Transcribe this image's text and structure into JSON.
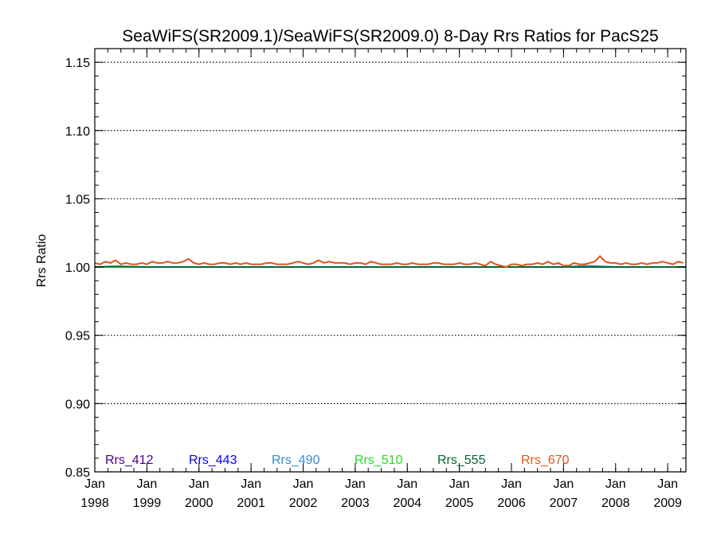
{
  "chart_data": {
    "type": "line",
    "title": "SeaWiFS(SR2009.1)/SeaWiFS(SR2009.0) 8-Day Rrs Ratios for PacS25",
    "xlabel": "",
    "ylabel": "Rrs Ratio",
    "xlim": [
      1998.0,
      2009.35
    ],
    "ylim": [
      0.85,
      1.16
    ],
    "yticks": [
      0.85,
      0.9,
      0.95,
      1.0,
      1.05,
      1.1,
      1.15
    ],
    "ytick_labels": [
      "0.85",
      "0.90",
      "0.95",
      "1.00",
      "1.05",
      "1.10",
      "1.15"
    ],
    "xticks": [
      {
        "value": 1998,
        "month": "Jan",
        "year": "1998"
      },
      {
        "value": 1999,
        "month": "Jan",
        "year": "1999"
      },
      {
        "value": 2000,
        "month": "Jan",
        "year": "2000"
      },
      {
        "value": 2001,
        "month": "Jan",
        "year": "2001"
      },
      {
        "value": 2002,
        "month": "Jan",
        "year": "2002"
      },
      {
        "value": 2003,
        "month": "Jan",
        "year": "2003"
      },
      {
        "value": 2004,
        "month": "Jan",
        "year": "2004"
      },
      {
        "value": 2005,
        "month": "Jan",
        "year": "2005"
      },
      {
        "value": 2006,
        "month": "Jan",
        "year": "2006"
      },
      {
        "value": 2007,
        "month": "Jan",
        "year": "2007"
      },
      {
        "value": 2008,
        "month": "Jan",
        "year": "2008"
      },
      {
        "value": 2009,
        "month": "Jan",
        "year": "2009"
      }
    ],
    "grid": "horizontal-dotted",
    "legend": "bottom",
    "series": [
      {
        "name": "Rrs_412",
        "color": "#4b0082",
        "x": [
          1998.0,
          1999.0,
          2000.0,
          2001.0,
          2002.0,
          2003.0,
          2004.0,
          2005.0,
          2006.0,
          2007.0,
          2008.0,
          2009.0,
          2009.35
        ],
        "y": [
          1.0,
          1.0,
          1.0,
          1.0,
          1.0,
          1.0,
          1.0,
          1.0,
          1.0,
          1.0,
          1.0,
          1.0,
          1.0
        ]
      },
      {
        "name": "Rrs_443",
        "color": "#0000ff",
        "x": [
          1998.0,
          1999.0,
          2000.0,
          2001.0,
          2002.0,
          2003.0,
          2004.0,
          2005.0,
          2006.0,
          2007.0,
          2008.0,
          2009.0,
          2009.35
        ],
        "y": [
          1.0,
          1.0,
          1.0,
          1.0,
          1.0,
          1.0,
          1.0,
          1.0,
          1.0,
          1.0,
          1.0,
          1.0,
          1.0
        ]
      },
      {
        "name": "Rrs_490",
        "color": "#3a8ad6",
        "x": [
          1998.0,
          1999.0,
          2000.0,
          2001.0,
          2002.0,
          2003.0,
          2004.0,
          2005.0,
          2006.0,
          2007.0,
          2007.45,
          2008.0,
          2009.0,
          2009.35
        ],
        "y": [
          1.0,
          1.0,
          1.0,
          1.0,
          1.0,
          1.0,
          1.0,
          1.0,
          1.0,
          1.0,
          1.001,
          1.0,
          1.0,
          1.0
        ]
      },
      {
        "name": "Rrs_510",
        "color": "#22dd22",
        "x": [
          1998.0,
          1999.0,
          2000.0,
          2001.0,
          2002.0,
          2003.0,
          2004.0,
          2005.0,
          2006.0,
          2007.0,
          2008.0,
          2009.0,
          2009.35
        ],
        "y": [
          1.0,
          1.0,
          1.0,
          1.0,
          1.0,
          1.0,
          1.0,
          1.0,
          1.0,
          1.0,
          1.0,
          1.0,
          1.0
        ]
      },
      {
        "name": "Rrs_555",
        "color": "#006633",
        "x": [
          1998.0,
          1998.4,
          1999.0,
          2000.0,
          2001.0,
          2002.0,
          2003.0,
          2004.0,
          2005.0,
          2006.0,
          2007.0,
          2008.0,
          2009.0,
          2009.35
        ],
        "y": [
          1.0,
          1.0005,
          1.0,
          1.0,
          1.0,
          1.0,
          1.0,
          1.0,
          1.0,
          1.0,
          1.0,
          1.0,
          1.0,
          1.0
        ]
      },
      {
        "name": "Rrs_670",
        "color": "#e0521b",
        "x": [
          1998.0,
          1998.1,
          1998.2,
          1998.3,
          1998.4,
          1998.5,
          1998.6,
          1998.7,
          1998.8,
          1998.9,
          1999.0,
          1999.1,
          1999.2,
          1999.3,
          1999.4,
          1999.5,
          1999.6,
          1999.7,
          1999.8,
          1999.9,
          2000.0,
          2000.1,
          2000.2,
          2000.3,
          2000.4,
          2000.5,
          2000.6,
          2000.7,
          2000.8,
          2000.9,
          2001.0,
          2001.1,
          2001.2,
          2001.3,
          2001.4,
          2001.5,
          2001.6,
          2001.7,
          2001.8,
          2001.9,
          2002.0,
          2002.1,
          2002.2,
          2002.3,
          2002.4,
          2002.5,
          2002.6,
          2002.7,
          2002.8,
          2002.9,
          2003.0,
          2003.1,
          2003.2,
          2003.3,
          2003.4,
          2003.5,
          2003.6,
          2003.7,
          2003.8,
          2003.9,
          2004.0,
          2004.1,
          2004.2,
          2004.3,
          2004.4,
          2004.5,
          2004.6,
          2004.7,
          2004.8,
          2004.9,
          2005.0,
          2005.1,
          2005.2,
          2005.3,
          2005.4,
          2005.5,
          2005.6,
          2005.7,
          2005.8,
          2005.9,
          2006.0,
          2006.1,
          2006.2,
          2006.3,
          2006.4,
          2006.5,
          2006.6,
          2006.7,
          2006.8,
          2006.9,
          2007.0,
          2007.1,
          2007.2,
          2007.3,
          2007.4,
          2007.5,
          2007.6,
          2007.7,
          2007.8,
          2007.9,
          2008.0,
          2008.1,
          2008.2,
          2008.3,
          2008.4,
          2008.5,
          2008.6,
          2008.7,
          2008.8,
          2008.9,
          2009.0,
          2009.1,
          2009.2,
          2009.3
        ],
        "y": [
          1.003,
          1.002,
          1.004,
          1.003,
          1.005,
          1.002,
          1.003,
          1.002,
          1.002,
          1.003,
          1.002,
          1.004,
          1.003,
          1.003,
          1.004,
          1.003,
          1.003,
          1.004,
          1.006,
          1.003,
          1.002,
          1.003,
          1.002,
          1.002,
          1.003,
          1.003,
          1.002,
          1.003,
          1.002,
          1.003,
          1.002,
          1.002,
          1.002,
          1.003,
          1.003,
          1.002,
          1.002,
          1.002,
          1.003,
          1.004,
          1.003,
          1.002,
          1.003,
          1.005,
          1.003,
          1.004,
          1.003,
          1.003,
          1.003,
          1.002,
          1.003,
          1.003,
          1.002,
          1.004,
          1.003,
          1.002,
          1.002,
          1.002,
          1.003,
          1.002,
          1.002,
          1.003,
          1.002,
          1.002,
          1.002,
          1.003,
          1.003,
          1.002,
          1.002,
          1.002,
          1.003,
          1.002,
          1.002,
          1.003,
          1.002,
          1.001,
          1.004,
          1.002,
          1.001,
          1.0,
          1.002,
          1.002,
          1.001,
          1.002,
          1.002,
          1.003,
          1.002,
          1.004,
          1.002,
          1.003,
          1.001,
          1.001,
          1.003,
          1.002,
          1.002,
          1.003,
          1.004,
          1.008,
          1.004,
          1.003,
          1.003,
          1.002,
          1.003,
          1.002,
          1.002,
          1.003,
          1.002,
          1.003,
          1.003,
          1.004,
          1.003,
          1.002,
          1.004,
          1.003
        ]
      }
    ]
  }
}
